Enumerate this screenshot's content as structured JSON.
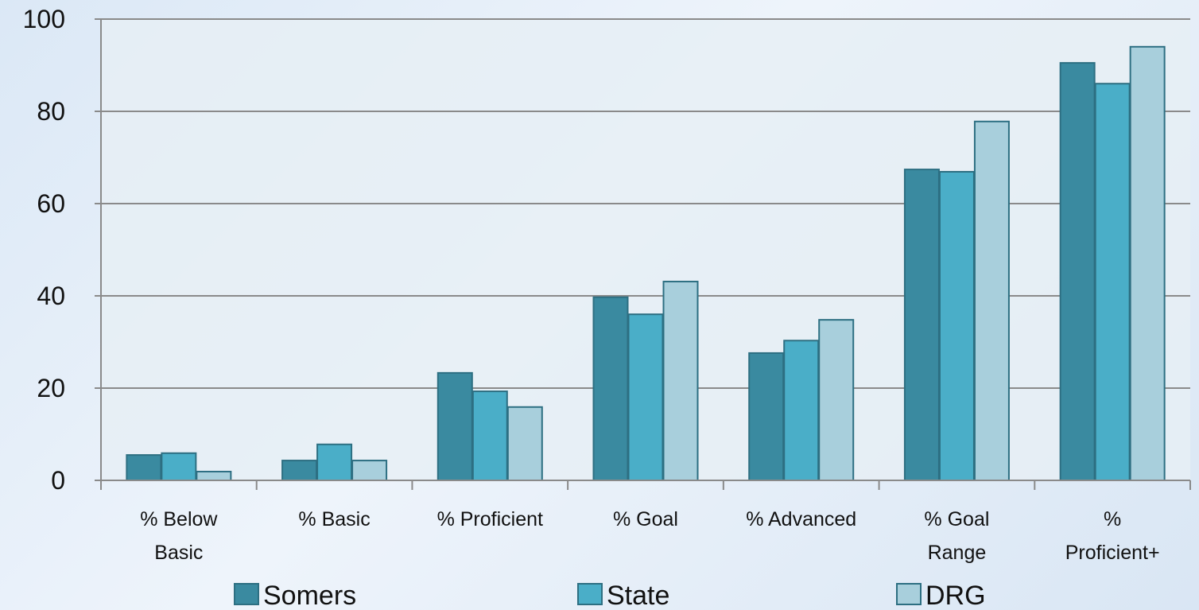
{
  "chart_data": {
    "type": "bar",
    "categories": [
      "% Below\nBasic",
      "% Basic",
      "% Proficient",
      "% Goal",
      "% Advanced",
      "% Goal\nRange",
      "%\nProficient+"
    ],
    "series": [
      {
        "name": "Somers",
        "color": "#3a8aa0",
        "values": [
          5.5,
          4.3,
          23.3,
          39.7,
          27.6,
          67.4,
          90.5
        ]
      },
      {
        "name": "State",
        "color": "#4aaec8",
        "values": [
          5.9,
          7.8,
          19.3,
          36.0,
          30.3,
          66.9,
          86.0
        ]
      },
      {
        "name": "DRG",
        "color": "#a8cfdc",
        "values": [
          1.9,
          4.3,
          15.9,
          43.1,
          34.8,
          77.8,
          94.0
        ]
      }
    ],
    "ylim": [
      0,
      100
    ],
    "yticks": [
      0,
      20,
      40,
      60,
      80,
      100
    ],
    "grid": true
  }
}
